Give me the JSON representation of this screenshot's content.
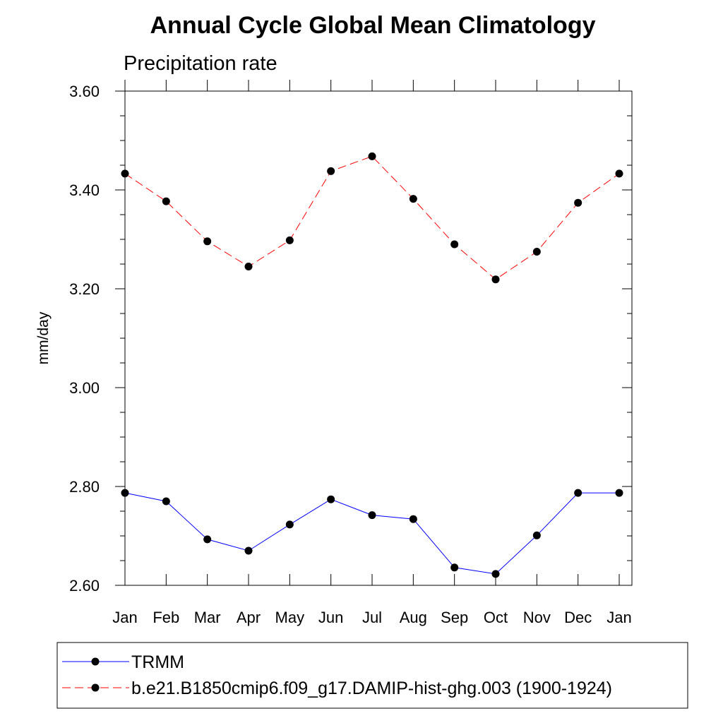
{
  "chart_data": {
    "type": "line",
    "title": "Annual Cycle Global Mean Climatology",
    "subtitle": "Precipitation rate",
    "xlabel": "",
    "ylabel": "mm/day",
    "categories": [
      "Jan",
      "Feb",
      "Mar",
      "Apr",
      "May",
      "Jun",
      "Jul",
      "Aug",
      "Sep",
      "Oct",
      "Nov",
      "Dec",
      "Jan"
    ],
    "ylim": [
      2.6,
      3.6
    ],
    "yticks": [
      "2.60",
      "2.80",
      "3.00",
      "3.20",
      "3.40",
      "3.60"
    ],
    "grid": false,
    "legend_position": "bottom",
    "series": [
      {
        "name": "TRMM",
        "color": "#0000ff",
        "line_style": "solid",
        "values": [
          2.787,
          2.77,
          2.693,
          2.67,
          2.723,
          2.774,
          2.742,
          2.734,
          2.636,
          2.623,
          2.701,
          2.787,
          2.787
        ]
      },
      {
        "name": "b.e21.B1850cmip6.f09_g17.DAMIP-hist-ghg.003 (1900-1924)",
        "color": "#ff0000",
        "line_style": "dashed",
        "values": [
          3.433,
          3.377,
          3.296,
          3.245,
          3.298,
          3.438,
          3.468,
          3.382,
          3.29,
          3.219,
          3.275,
          3.374,
          3.433
        ]
      }
    ]
  }
}
